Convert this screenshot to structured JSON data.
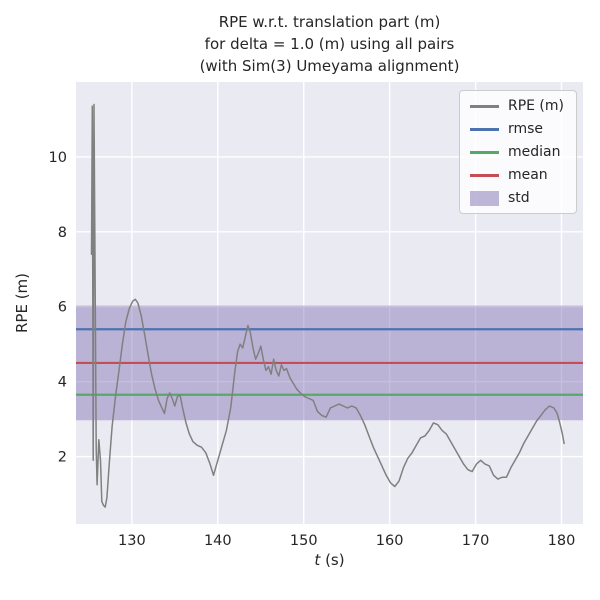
{
  "figure": {
    "title": "RPE w.r.t. translation part (m)\nfor delta = 1.0 (m) using all pairs\n(with Sim(3) Umeyama alignment)",
    "xlabel_var": "t",
    "xlabel_unit": " (s)",
    "ylabel": "RPE (m)"
  },
  "chart_data": {
    "type": "line",
    "title": "RPE w.r.t. translation part (m) for delta = 1.0 (m) using all pairs (with Sim(3) Umeyama alignment)",
    "xlabel": "t (s)",
    "ylabel": "RPE (m)",
    "xlim": [
      123.5,
      182.5
    ],
    "ylim": [
      0.2,
      12.0
    ],
    "xticks": [
      130,
      140,
      150,
      160,
      170,
      180
    ],
    "yticks": [
      2,
      4,
      6,
      8,
      10
    ],
    "grid": true,
    "legend_position": "upper right",
    "stats": {
      "rmse": 5.4,
      "mean": 4.5,
      "median": 3.65,
      "std_band": [
        2.97,
        6.03
      ]
    },
    "series": [
      {
        "name": "RPE (m)",
        "kind": "line",
        "color": "#808080",
        "points": [
          [
            125.3,
            7.4
          ],
          [
            125.4,
            11.35
          ],
          [
            125.5,
            1.9
          ],
          [
            125.6,
            11.4
          ],
          [
            125.75,
            6.0
          ],
          [
            125.85,
            2.2
          ],
          [
            125.95,
            1.25
          ],
          [
            126.15,
            2.45
          ],
          [
            126.35,
            1.9
          ],
          [
            126.5,
            0.8
          ],
          [
            126.7,
            0.7
          ],
          [
            126.9,
            0.65
          ],
          [
            127.1,
            0.9
          ],
          [
            127.4,
            1.9
          ],
          [
            127.7,
            2.8
          ],
          [
            128.1,
            3.6
          ],
          [
            128.5,
            4.3
          ],
          [
            128.9,
            5.0
          ],
          [
            129.3,
            5.6
          ],
          [
            129.7,
            5.95
          ],
          [
            130.1,
            6.15
          ],
          [
            130.4,
            6.2
          ],
          [
            130.7,
            6.1
          ],
          [
            131.1,
            5.75
          ],
          [
            131.5,
            5.25
          ],
          [
            131.9,
            4.7
          ],
          [
            132.3,
            4.2
          ],
          [
            132.7,
            3.8
          ],
          [
            133.1,
            3.5
          ],
          [
            133.5,
            3.3
          ],
          [
            133.8,
            3.15
          ],
          [
            134.1,
            3.55
          ],
          [
            134.4,
            3.7
          ],
          [
            134.7,
            3.55
          ],
          [
            135.0,
            3.35
          ],
          [
            135.3,
            3.6
          ],
          [
            135.6,
            3.65
          ],
          [
            135.9,
            3.3
          ],
          [
            136.3,
            2.9
          ],
          [
            136.7,
            2.6
          ],
          [
            137.1,
            2.4
          ],
          [
            137.6,
            2.3
          ],
          [
            138.1,
            2.25
          ],
          [
            138.6,
            2.1
          ],
          [
            139.1,
            1.8
          ],
          [
            139.5,
            1.5
          ],
          [
            140.0,
            1.9
          ],
          [
            140.5,
            2.3
          ],
          [
            141.0,
            2.7
          ],
          [
            141.5,
            3.3
          ],
          [
            142.0,
            4.3
          ],
          [
            142.3,
            4.8
          ],
          [
            142.6,
            5.0
          ],
          [
            142.9,
            4.9
          ],
          [
            143.2,
            5.2
          ],
          [
            143.5,
            5.5
          ],
          [
            143.8,
            5.3
          ],
          [
            144.1,
            4.9
          ],
          [
            144.4,
            4.6
          ],
          [
            144.7,
            4.75
          ],
          [
            145.0,
            4.95
          ],
          [
            145.3,
            4.6
          ],
          [
            145.6,
            4.3
          ],
          [
            145.9,
            4.4
          ],
          [
            146.2,
            4.2
          ],
          [
            146.5,
            4.6
          ],
          [
            146.8,
            4.3
          ],
          [
            147.1,
            4.15
          ],
          [
            147.4,
            4.45
          ],
          [
            147.7,
            4.3
          ],
          [
            148.0,
            4.35
          ],
          [
            148.4,
            4.1
          ],
          [
            148.8,
            3.95
          ],
          [
            149.2,
            3.8
          ],
          [
            149.6,
            3.7
          ],
          [
            150.1,
            3.6
          ],
          [
            150.6,
            3.55
          ],
          [
            151.1,
            3.5
          ],
          [
            151.6,
            3.2
          ],
          [
            152.1,
            3.1
          ],
          [
            152.6,
            3.05
          ],
          [
            153.1,
            3.3
          ],
          [
            153.6,
            3.35
          ],
          [
            154.1,
            3.4
          ],
          [
            154.6,
            3.35
          ],
          [
            155.1,
            3.3
          ],
          [
            155.6,
            3.35
          ],
          [
            156.1,
            3.3
          ],
          [
            156.6,
            3.1
          ],
          [
            157.1,
            2.85
          ],
          [
            157.6,
            2.55
          ],
          [
            158.1,
            2.25
          ],
          [
            158.6,
            2.0
          ],
          [
            159.1,
            1.75
          ],
          [
            159.6,
            1.5
          ],
          [
            160.1,
            1.3
          ],
          [
            160.6,
            1.2
          ],
          [
            161.1,
            1.35
          ],
          [
            161.6,
            1.7
          ],
          [
            162.1,
            1.95
          ],
          [
            162.6,
            2.1
          ],
          [
            163.1,
            2.3
          ],
          [
            163.6,
            2.5
          ],
          [
            164.1,
            2.55
          ],
          [
            164.6,
            2.7
          ],
          [
            165.1,
            2.9
          ],
          [
            165.6,
            2.85
          ],
          [
            166.1,
            2.7
          ],
          [
            166.6,
            2.6
          ],
          [
            167.1,
            2.4
          ],
          [
            167.6,
            2.2
          ],
          [
            168.1,
            2.0
          ],
          [
            168.6,
            1.8
          ],
          [
            169.1,
            1.65
          ],
          [
            169.6,
            1.6
          ],
          [
            170.1,
            1.8
          ],
          [
            170.6,
            1.9
          ],
          [
            171.1,
            1.8
          ],
          [
            171.6,
            1.75
          ],
          [
            172.1,
            1.5
          ],
          [
            172.6,
            1.4
          ],
          [
            173.1,
            1.45
          ],
          [
            173.6,
            1.45
          ],
          [
            174.1,
            1.7
          ],
          [
            174.6,
            1.9
          ],
          [
            175.1,
            2.1
          ],
          [
            175.6,
            2.35
          ],
          [
            176.1,
            2.55
          ],
          [
            176.6,
            2.75
          ],
          [
            177.1,
            2.95
          ],
          [
            177.6,
            3.1
          ],
          [
            178.1,
            3.25
          ],
          [
            178.6,
            3.35
          ],
          [
            179.1,
            3.3
          ],
          [
            179.5,
            3.15
          ],
          [
            179.8,
            2.9
          ],
          [
            180.1,
            2.6
          ],
          [
            180.3,
            2.35
          ]
        ]
      },
      {
        "name": "rmse",
        "kind": "hline",
        "color": "#4C72B0",
        "value": 5.4
      },
      {
        "name": "median",
        "kind": "hline",
        "color": "#55A868",
        "value": 3.65
      },
      {
        "name": "mean",
        "kind": "hline",
        "color": "#C44E52",
        "value": 4.5
      },
      {
        "name": "std",
        "kind": "band",
        "color": "#8172B2",
        "alpha": 0.45,
        "range": [
          2.97,
          6.03
        ]
      }
    ],
    "legend": [
      {
        "label": "RPE (m)",
        "swatch": "line",
        "color": "#808080"
      },
      {
        "label": "rmse",
        "swatch": "line",
        "color": "#4C72B0"
      },
      {
        "label": "median",
        "swatch": "line",
        "color": "#55A868"
      },
      {
        "label": "mean",
        "swatch": "line",
        "color": "#C44E52"
      },
      {
        "label": "std",
        "swatch": "patch",
        "color": "#8172B2"
      }
    ],
    "colors": {
      "plot_bg": "#EAEAF2",
      "grid": "#FFFFFF",
      "tick_text": "#262626"
    }
  }
}
